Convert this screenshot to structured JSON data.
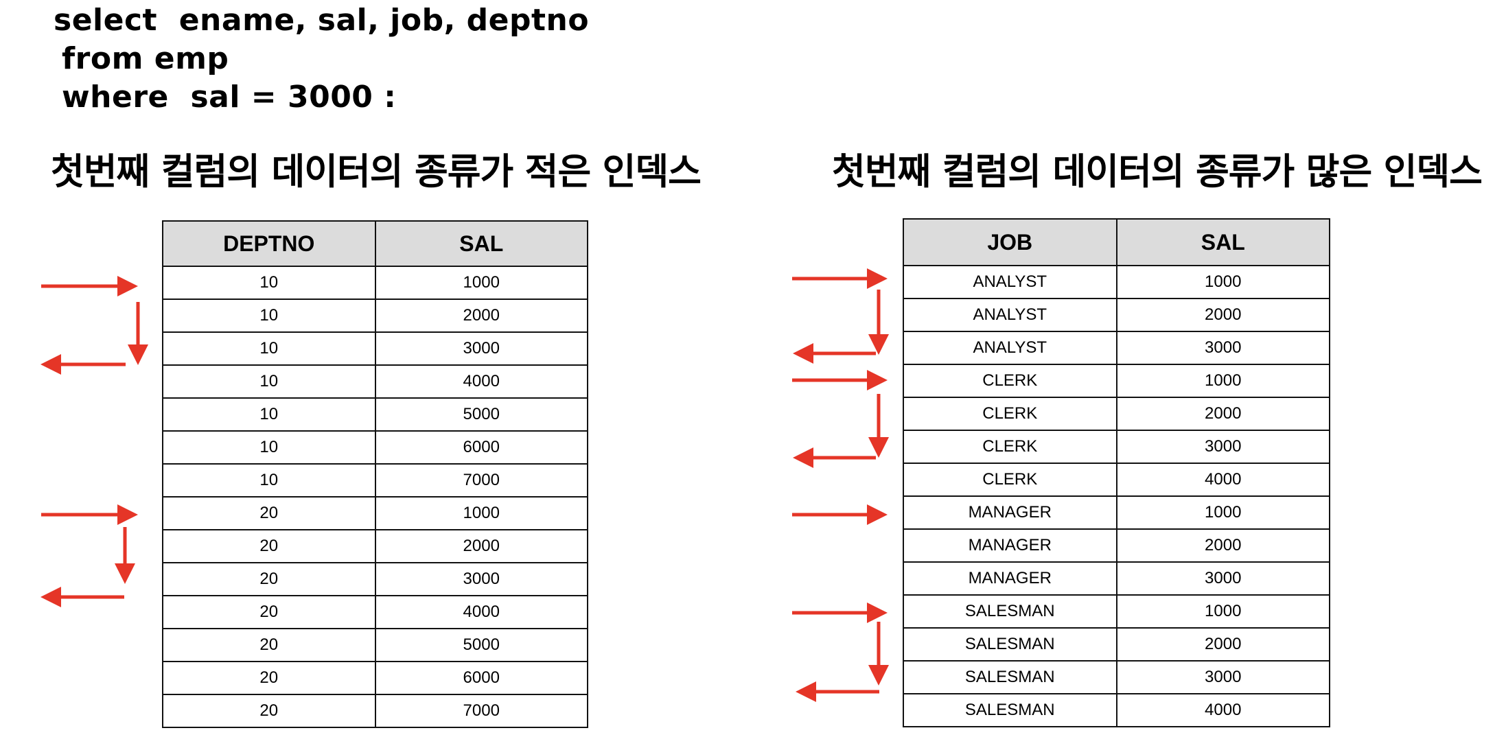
{
  "query": {
    "line1": "select  ename, sal, job, deptno",
    "line2": "from emp",
    "line3": "where  sal = 3000 :"
  },
  "left_index": {
    "heading": "첫번째 컬럼의 데이터의 종류가 적은 인덱스",
    "columns": [
      "DEPTNO",
      "SAL"
    ],
    "rows": [
      [
        "10",
        "1000"
      ],
      [
        "10",
        "2000"
      ],
      [
        "10",
        "3000"
      ],
      [
        "10",
        "4000"
      ],
      [
        "10",
        "5000"
      ],
      [
        "10",
        "6000"
      ],
      [
        "10",
        "7000"
      ],
      [
        "20",
        "1000"
      ],
      [
        "20",
        "2000"
      ],
      [
        "20",
        "3000"
      ],
      [
        "20",
        "4000"
      ],
      [
        "20",
        "5000"
      ],
      [
        "20",
        "6000"
      ],
      [
        "20",
        "7000"
      ]
    ]
  },
  "right_index": {
    "heading": "첫번째 컬럼의 데이터의 종류가 많은 인덱스",
    "columns": [
      "JOB",
      "SAL"
    ],
    "rows": [
      [
        "ANALYST",
        "1000"
      ],
      [
        "ANALYST",
        "2000"
      ],
      [
        "ANALYST",
        "3000"
      ],
      [
        "CLERK",
        "1000"
      ],
      [
        "CLERK",
        "2000"
      ],
      [
        "CLERK",
        "3000"
      ],
      [
        "CLERK",
        "4000"
      ],
      [
        "MANAGER",
        "1000"
      ],
      [
        "MANAGER",
        "2000"
      ],
      [
        "MANAGER",
        "3000"
      ],
      [
        "SALESMAN",
        "1000"
      ],
      [
        "SALESMAN",
        "2000"
      ],
      [
        "SALESMAN",
        "3000"
      ],
      [
        "SALESMAN",
        "4000"
      ]
    ]
  },
  "arrow_color": "#e53527"
}
